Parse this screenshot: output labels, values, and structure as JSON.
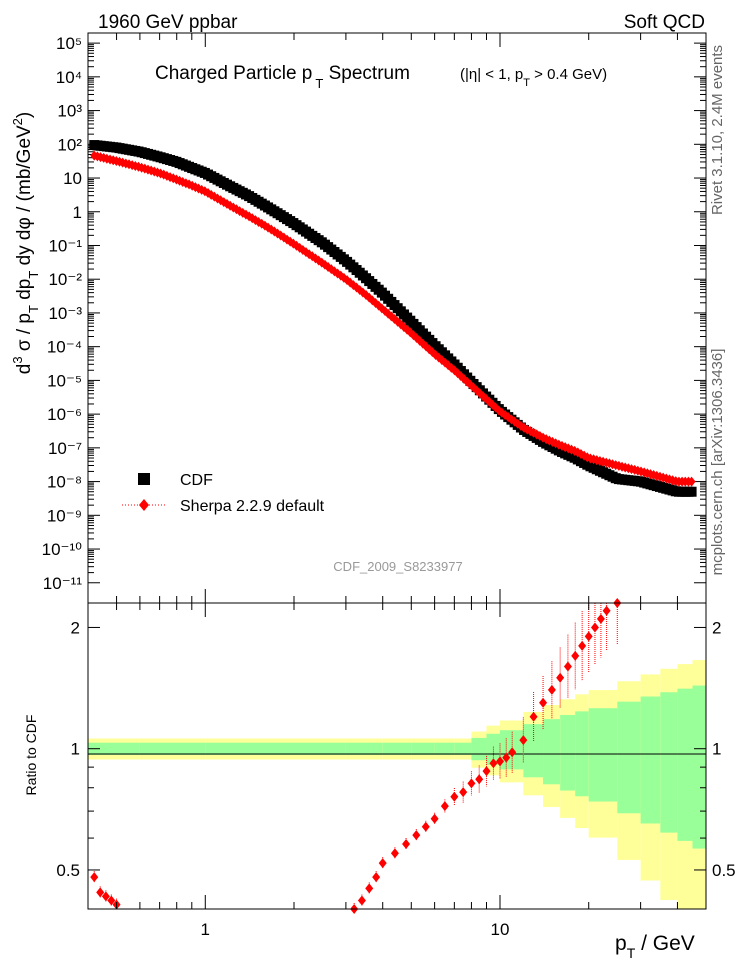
{
  "header": {
    "left": "1960 GeV ppbar",
    "right": "Soft QCD"
  },
  "side_labels": {
    "rivet": "Rivet 3.1.10,  2.4M events",
    "mcplots": "mcplots.cern.ch [arXiv:1306.3436]"
  },
  "top_panel": {
    "title_main": "Charged Particle p",
    "title_sub": "T",
    "title_rest": " Spectrum",
    "title_cond": "(|η| < 1, p",
    "title_cond_sub": "T",
    "title_cond_rest": " > 0.4 GeV)",
    "analysis_id": "CDF_2009_S8233977",
    "ylabel": "d³σ / p_T dp_T dy dφ / (mb/GeV²)",
    "y_ticks": [
      "10⁻¹¹",
      "10⁻¹⁰",
      "10⁻⁹",
      "10⁻⁸",
      "10⁻⁷",
      "10⁻⁶",
      "10⁻⁵",
      "10⁻⁴",
      "10⁻³",
      "10⁻²",
      "10⁻¹",
      "1",
      "10",
      "10²",
      "10³",
      "10⁴",
      "10⁵"
    ]
  },
  "bottom_panel": {
    "ylabel": "Ratio to CDF",
    "y_ticks": [
      "0.5",
      "1",
      "2"
    ],
    "x_ticks": [
      "1",
      "10"
    ],
    "xlabel": "p_T / GeV"
  },
  "legend": {
    "data_label": "CDF",
    "mc_label": "Sherpa 2.2.9 default"
  },
  "colors": {
    "data": "#000000",
    "mc": "#ff0000",
    "band_inner": "#99ff99",
    "band_outer": "#ffff99"
  },
  "chart_data": [
    {
      "type": "scatter",
      "title": "Charged Particle pT Spectrum",
      "xlabel": "pT / GeV",
      "ylabel": "d3 sigma / pT dpT dy dphi / (mb/GeV2)",
      "x_scale": "log",
      "y_scale": "log",
      "xlim": [
        0.4,
        50
      ],
      "ylim": [
        2e-12,
        200000.0
      ],
      "series": [
        {
          "name": "CDF",
          "marker": "square",
          "x": [
            0.42,
            0.5,
            0.6,
            0.7,
            0.8,
            0.9,
            1.0,
            1.2,
            1.4,
            1.6,
            1.8,
            2.0,
            2.5,
            3.0,
            3.5,
            4.0,
            5.0,
            6.0,
            7.0,
            8.0,
            10.0,
            12.0,
            14.0,
            16.0,
            18.0,
            20.0,
            25.0,
            30.0,
            40.0
          ],
          "y": [
            95,
            80,
            60,
            42,
            30,
            20,
            14,
            6,
            3,
            1.5,
            0.8,
            0.45,
            0.12,
            0.035,
            0.011,
            0.0038,
            0.00055,
            0.00011,
            3e-05,
            9e-06,
            1.3e-06,
            3.5e-07,
            1.5e-07,
            8e-08,
            5e-08,
            3e-08,
            1.2e-08,
            1e-08,
            5e-09
          ]
        },
        {
          "name": "Sherpa 2.2.9 default",
          "marker": "diamond",
          "x": [
            0.42,
            0.5,
            0.6,
            0.7,
            0.8,
            0.9,
            1.0,
            1.2,
            1.4,
            1.6,
            1.8,
            2.0,
            2.5,
            3.0,
            3.5,
            4.0,
            5.0,
            6.0,
            7.0,
            8.0,
            10.0,
            12.0,
            14.0,
            16.0,
            18.0,
            20.0,
            25.0,
            30.0,
            40.0
          ],
          "y": [
            46,
            32,
            21,
            14,
            9,
            6,
            4,
            1.6,
            0.75,
            0.38,
            0.2,
            0.11,
            0.03,
            0.01,
            0.0035,
            0.0013,
            0.00025,
            6e-05,
            2e-05,
            7e-06,
            1.2e-06,
            4e-07,
            2e-07,
            1.2e-07,
            8e-08,
            5e-08,
            3e-08,
            2e-08,
            1e-08
          ]
        }
      ]
    },
    {
      "type": "scatter",
      "ylabel": "Ratio to CDF",
      "xlabel": "pT / GeV",
      "x_scale": "log",
      "y_scale": "log",
      "xlim": [
        0.4,
        50
      ],
      "ylim": [
        0.4,
        2.3
      ],
      "reference_line": 1,
      "series": [
        {
          "name": "Sherpa 2.2.9 default",
          "x": [
            0.42,
            0.44,
            0.46,
            0.48,
            0.5,
            3.2,
            3.4,
            3.6,
            3.8,
            4.0,
            4.4,
            4.8,
            5.2,
            5.6,
            6.0,
            6.5,
            7.0,
            7.5,
            8.0,
            8.5,
            9.0,
            9.5,
            10.0,
            10.5,
            11.0,
            12.0,
            13.0,
            14.0,
            15.0,
            16.0,
            17.0,
            18.0,
            19.0,
            20.0,
            21.0,
            22.0,
            23.0,
            25.0
          ],
          "y": [
            0.48,
            0.44,
            0.43,
            0.42,
            0.41,
            0.4,
            0.42,
            0.45,
            0.48,
            0.52,
            0.55,
            0.58,
            0.61,
            0.64,
            0.67,
            0.72,
            0.76,
            0.78,
            0.82,
            0.84,
            0.88,
            0.92,
            0.93,
            0.95,
            0.98,
            1.05,
            1.2,
            1.3,
            1.4,
            1.5,
            1.6,
            1.7,
            1.8,
            1.9,
            2.0,
            2.1,
            2.2,
            2.3
          ]
        }
      ]
    }
  ]
}
